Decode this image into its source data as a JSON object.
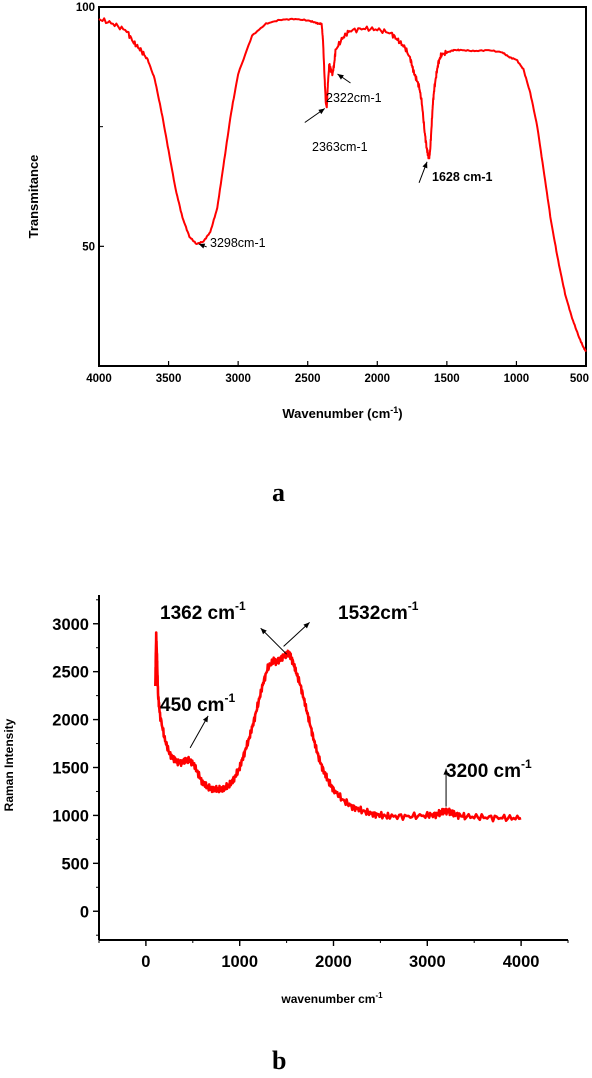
{
  "figure": {
    "panel_a_label": "a",
    "panel_b_label": "b"
  },
  "colors": {
    "series": "#ff0000",
    "axis": "#000000",
    "background": "#ffffff"
  },
  "chart_data": [
    {
      "id": "a",
      "type": "line",
      "title": "",
      "xlabel_main": "Wavenumber (cm",
      "xlabel_sup": "-1",
      "xlabel_tail": ")",
      "ylabel": "Transmitance",
      "xlim": [
        4000,
        500
      ],
      "ylim": [
        25,
        100
      ],
      "x_ticks": [
        4000,
        3500,
        3000,
        2500,
        2000,
        1500,
        1000,
        500
      ],
      "y_tick_labels": [
        {
          "value": 100,
          "label": "100"
        },
        {
          "value": 50,
          "label": "50"
        }
      ],
      "grid": false,
      "series": [
        {
          "x": [
            4000,
            3900,
            3800,
            3750,
            3700,
            3650,
            3600,
            3550,
            3500,
            3450,
            3400,
            3350,
            3300,
            3250,
            3200,
            3150,
            3100,
            3050,
            3000,
            2900,
            2800,
            2700,
            2600,
            2500,
            2450,
            2420,
            2400,
            2390,
            2380,
            2370,
            2363,
            2355,
            2345,
            2335,
            2322,
            2310,
            2300,
            2250,
            2200,
            2100,
            2000,
            1900,
            1850,
            1800,
            1760,
            1740,
            1720,
            1700,
            1680,
            1660,
            1645,
            1635,
            1628,
            1620,
            1610,
            1600,
            1590,
            1575,
            1560,
            1540,
            1500,
            1450,
            1400,
            1300,
            1200,
            1100,
            1050,
            1000,
            950,
            900,
            850,
            800,
            750,
            700,
            650,
            600,
            550,
            520,
            500
          ],
          "y": [
            97.5,
            96.5,
            95,
            92.5,
            91,
            89,
            85,
            78,
            70,
            62,
            56,
            52,
            50.5,
            51,
            53,
            58,
            68,
            78,
            86,
            94,
            96.5,
            97.3,
            97.5,
            97.2,
            96.8,
            96.5,
            96.5,
            93,
            86,
            80,
            79,
            84,
            88,
            87,
            86,
            88,
            91,
            93.5,
            95,
            95.5,
            95.3,
            94.5,
            93,
            91.5,
            89,
            86.5,
            85,
            83.5,
            80,
            74,
            70.5,
            69,
            68.5,
            70,
            75,
            80,
            83,
            86,
            88.5,
            90,
            90.5,
            91,
            91,
            90.8,
            91,
            90.5,
            89.5,
            89,
            87,
            82,
            75,
            65,
            55,
            47,
            40,
            35,
            31,
            29,
            28
          ]
        }
      ],
      "annotations": [
        {
          "text": "2322cm-1",
          "x": 2322,
          "y": 86,
          "bold": false
        },
        {
          "text": "2363cm-1",
          "x": 2363,
          "y": 79,
          "bold": false
        },
        {
          "text": "1628 cm-1",
          "x": 1628,
          "y": 68.5,
          "bold": true
        },
        {
          "text": "3298cm-1",
          "x": 3298,
          "y": 50.5,
          "bold": false
        }
      ]
    },
    {
      "id": "b",
      "type": "line",
      "title": "",
      "xlabel_main": "wavenumber cm",
      "xlabel_sup": "-1",
      "ylabel": "Raman Intensity",
      "xlim": [
        -500,
        4500
      ],
      "ylim": [
        -300,
        3300
      ],
      "x_ticks": [
        0,
        1000,
        2000,
        3000,
        4000
      ],
      "y_ticks": [
        0,
        500,
        1000,
        1500,
        2000,
        2500,
        3000
      ],
      "grid": false,
      "series": [
        {
          "x": [
            100,
            110,
            120,
            130,
            150,
            200,
            250,
            300,
            350,
            400,
            450,
            500,
            550,
            600,
            650,
            700,
            750,
            800,
            850,
            900,
            950,
            1000,
            1050,
            1100,
            1150,
            1200,
            1250,
            1300,
            1362,
            1400,
            1450,
            1500,
            1532,
            1560,
            1600,
            1650,
            1700,
            1750,
            1800,
            1850,
            1900,
            1950,
            2000,
            2100,
            2200,
            2300,
            2400,
            2500,
            2600,
            2800,
            3000,
            3100,
            3150,
            3200,
            3250,
            3300,
            3400,
            3600,
            3800,
            4000
          ],
          "y": [
            2350,
            2880,
            2600,
            2250,
            2050,
            1800,
            1650,
            1580,
            1550,
            1560,
            1580,
            1550,
            1450,
            1350,
            1300,
            1280,
            1270,
            1275,
            1290,
            1330,
            1400,
            1500,
            1650,
            1800,
            1980,
            2180,
            2380,
            2540,
            2620,
            2600,
            2640,
            2690,
            2680,
            2620,
            2500,
            2350,
            2150,
            1950,
            1750,
            1580,
            1450,
            1350,
            1270,
            1160,
            1090,
            1050,
            1020,
            1000,
            990,
            990,
            1000,
            1010,
            1030,
            1050,
            1030,
            1010,
            990,
            980,
            975,
            970
          ]
        }
      ],
      "annotations": [
        {
          "text": "1362 cm",
          "sup": "-1",
          "x": 1362,
          "y": 2620
        },
        {
          "text": "1532cm",
          "sup": "-1",
          "x": 1532,
          "y": 2680
        },
        {
          "text": "450 cm",
          "sup": "-1",
          "x": 450,
          "y": 1580
        },
        {
          "text": "3200 cm",
          "sup": "-1",
          "x": 3200,
          "y": 1050
        }
      ]
    }
  ]
}
